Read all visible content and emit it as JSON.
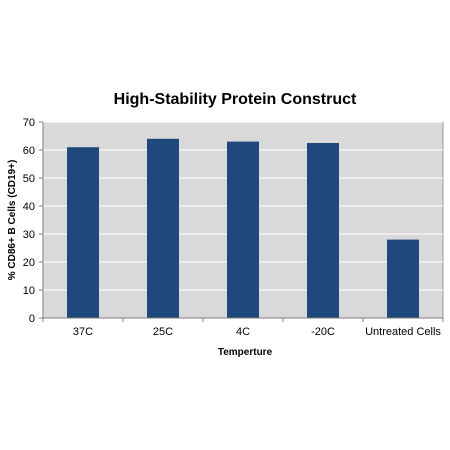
{
  "chart_data": {
    "type": "bar",
    "title": "High-Stability Protein Construct",
    "xlabel": "Temperture",
    "ylabel": "% CD86+ B Cells (CD19+)",
    "categories": [
      "37C",
      "25C",
      "4C",
      "-20C",
      "Untreated Cells"
    ],
    "values": [
      61,
      64,
      63,
      62.5,
      28
    ],
    "ylim": [
      0,
      70
    ],
    "yticks": [
      0,
      10,
      20,
      30,
      40,
      50,
      60,
      70
    ],
    "grid": true,
    "legend": "none",
    "colors": {
      "bar": "#1f497d",
      "plot_background": "#d9d9d9",
      "gridline": "#ffffff",
      "axis": "#7f7f7f"
    }
  }
}
